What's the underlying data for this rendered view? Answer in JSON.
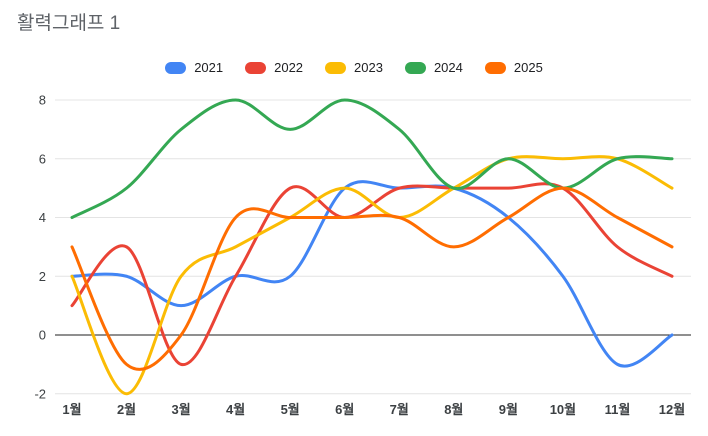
{
  "title": "활력그래프 1",
  "chart_data": {
    "type": "line",
    "line_style": "smooth",
    "title": "활력그래프 1",
    "xlabel": "",
    "ylabel": "",
    "legend_position": "top-center",
    "grid": true,
    "ylim": [
      -2,
      8
    ],
    "yticks": [
      -2,
      0,
      2,
      4,
      6,
      8
    ],
    "categories": [
      "1월",
      "2월",
      "3월",
      "4월",
      "5월",
      "6월",
      "7월",
      "8월",
      "9월",
      "10월",
      "11월",
      "12월"
    ],
    "series": [
      {
        "name": "2021",
        "color": "#4285F4",
        "values": [
          2,
          2,
          1,
          2,
          2,
          5,
          5,
          5,
          4,
          2,
          -1,
          0
        ]
      },
      {
        "name": "2022",
        "color": "#EA4335",
        "values": [
          1,
          3,
          -1,
          2,
          5,
          4,
          5,
          5,
          5,
          5,
          3,
          2
        ]
      },
      {
        "name": "2023",
        "color": "#FBBC04",
        "values": [
          2,
          -2,
          2,
          3,
          4,
          5,
          4,
          5,
          6,
          6,
          6,
          5
        ]
      },
      {
        "name": "2024",
        "color": "#34A853",
        "values": [
          4,
          5,
          7,
          8,
          7,
          8,
          7,
          5,
          6,
          5,
          6,
          6
        ]
      },
      {
        "name": "2025",
        "color": "#FF6D01",
        "values": [
          3,
          -1,
          0,
          4,
          4,
          4,
          4,
          3,
          4,
          5,
          4,
          3
        ]
      }
    ],
    "colors": {
      "grid_line": "#e4e4e4",
      "zero_line": "#1f1f1f",
      "axis_label": "#3c4043",
      "title_text": "#5f6368",
      "background": "#ffffff"
    }
  }
}
